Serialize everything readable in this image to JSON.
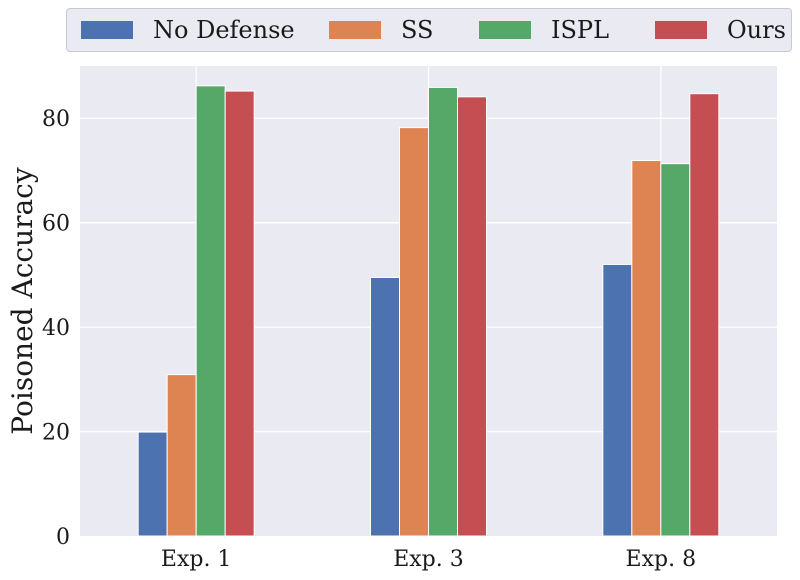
{
  "chart_data": {
    "type": "bar",
    "title": "",
    "xlabel": "",
    "ylabel": "Poisoned Accuracy",
    "categories": [
      "Exp. 1",
      "Exp. 3",
      "Exp. 8"
    ],
    "ylim": [
      0,
      90
    ],
    "yticks": [
      0,
      20,
      40,
      60,
      80
    ],
    "grid": true,
    "legend_position": "top",
    "series": [
      {
        "name": "No Defense",
        "color": "#4c72b0",
        "values": [
          19.9,
          49.5,
          52.0
        ]
      },
      {
        "name": "SS",
        "color": "#dd8452",
        "values": [
          30.9,
          78.2,
          71.9
        ]
      },
      {
        "name": "ISPL",
        "color": "#55a868",
        "values": [
          86.2,
          85.9,
          71.3
        ]
      },
      {
        "name": "Ours",
        "color": "#c44e52",
        "values": [
          85.2,
          84.1,
          84.7
        ]
      }
    ]
  }
}
